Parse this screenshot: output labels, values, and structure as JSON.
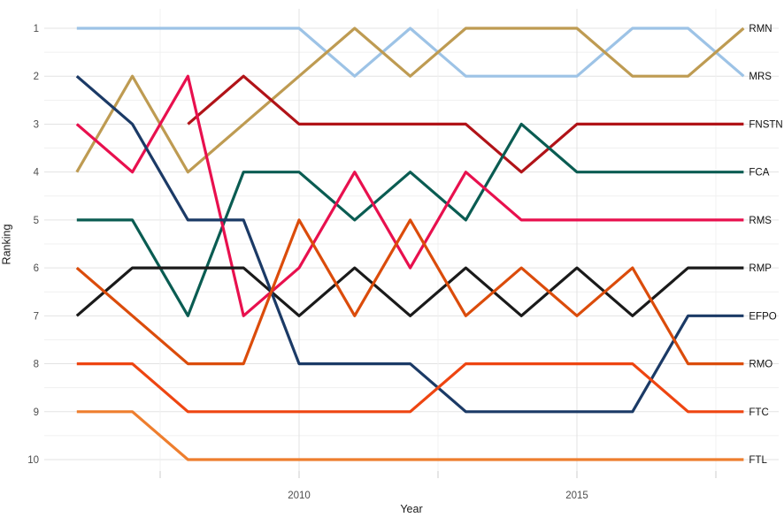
{
  "colors": {
    "background": "#ffffff",
    "grid_major": "#e3e3e3",
    "grid_minor": "#f0f0f0",
    "tick_mark": "#cccccc",
    "tick_text": "#4d4d4d",
    "axis_title_text": "#1a1a1a",
    "series_label_text": "#111111"
  },
  "chart_data": {
    "type": "line",
    "subtype": "bump-chart",
    "title": "",
    "xlabel": "Year",
    "ylabel": "Ranking",
    "xlim": [
      2006,
      2018
    ],
    "ylim": [
      1,
      10
    ],
    "y_reversed": true,
    "grid": true,
    "legend_position": "labels-at-line-ends-right",
    "x": [
      2006,
      2007,
      2008,
      2009,
      2010,
      2011,
      2012,
      2013,
      2014,
      2015,
      2016,
      2017,
      2018
    ],
    "x_major_ticks": [
      2010,
      2015
    ],
    "x_tick_labels": [
      "2010",
      "2015"
    ],
    "x_minor_gridlines": [
      2007.5,
      2012.5,
      2017.5
    ],
    "y_ticks": [
      1,
      2,
      3,
      4,
      5,
      6,
      7,
      8,
      9,
      10
    ],
    "y_tick_labels": [
      "1",
      "2",
      "3",
      "4",
      "5",
      "6",
      "7",
      "8",
      "9",
      "10"
    ],
    "series": [
      {
        "name": "MRS",
        "color": "#9dc3e6",
        "ranks": [
          1,
          1,
          1,
          1,
          1,
          2,
          1,
          2,
          2,
          2,
          1,
          1,
          2
        ]
      },
      {
        "name": "RMN",
        "color": "#be9b52",
        "ranks": [
          4,
          2,
          4,
          3,
          2,
          1,
          2,
          1,
          1,
          1,
          2,
          2,
          1
        ]
      },
      {
        "name": "FNSTN",
        "color": "#b11318",
        "ranks": [
          null,
          null,
          3,
          2,
          3,
          3,
          3,
          3,
          4,
          3,
          3,
          3,
          3
        ]
      },
      {
        "name": "FCA",
        "color": "#0a5c52",
        "ranks": [
          5,
          5,
          7,
          4,
          4,
          5,
          4,
          5,
          3,
          4,
          4,
          4,
          4
        ]
      },
      {
        "name": "RMS",
        "color": "#e8104e",
        "ranks": [
          3,
          4,
          2,
          7,
          6,
          4,
          6,
          4,
          5,
          5,
          5,
          5,
          5
        ]
      },
      {
        "name": "RMP",
        "color": "#1a1a1a",
        "ranks": [
          7,
          6,
          6,
          6,
          7,
          6,
          7,
          6,
          7,
          6,
          7,
          6,
          6
        ]
      },
      {
        "name": "EFPO",
        "color": "#1b3a66",
        "ranks": [
          2,
          3,
          5,
          5,
          8,
          8,
          8,
          9,
          9,
          9,
          9,
          7,
          7
        ]
      },
      {
        "name": "RMO",
        "color": "#db4c0b",
        "ranks": [
          6,
          7,
          8,
          8,
          5,
          7,
          5,
          7,
          6,
          7,
          6,
          8,
          8
        ]
      },
      {
        "name": "FTC",
        "color": "#ee4511",
        "ranks": [
          8,
          8,
          9,
          9,
          9,
          9,
          9,
          8,
          8,
          8,
          8,
          9,
          9
        ]
      },
      {
        "name": "FTL",
        "color": "#ee7e2e",
        "ranks": [
          9,
          9,
          10,
          10,
          10,
          10,
          10,
          10,
          10,
          10,
          10,
          10,
          10
        ]
      }
    ]
  }
}
